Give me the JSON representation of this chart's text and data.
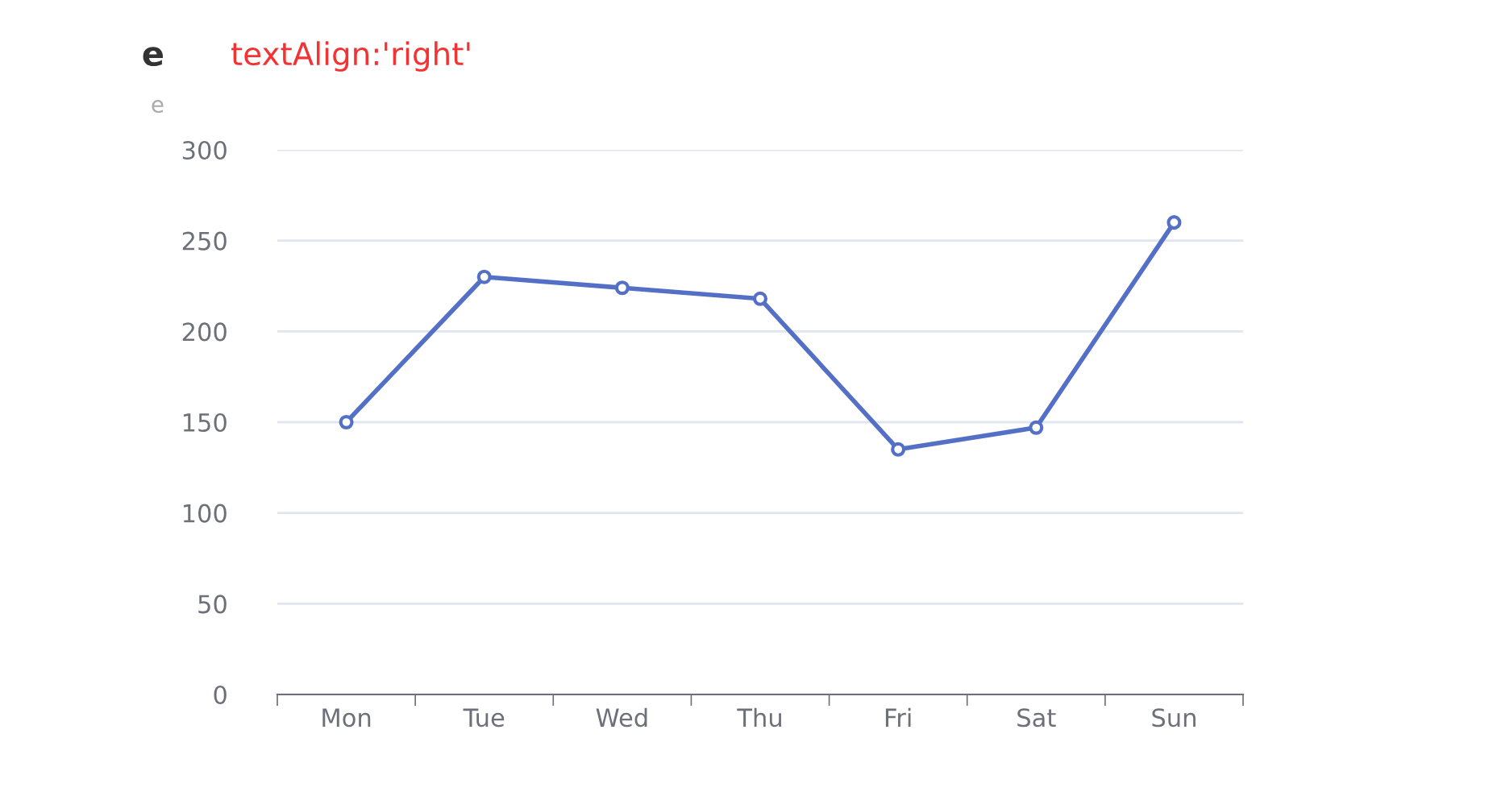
{
  "chart_data": {
    "type": "line",
    "title": "e",
    "subtitle": "e",
    "annotations": [
      "textAlign:'right'"
    ],
    "categories": [
      "Mon",
      "Tue",
      "Wed",
      "Thu",
      "Fri",
      "Sat",
      "Sun"
    ],
    "series": [
      {
        "color": "#5470c6",
        "values": [
          150,
          230,
          224,
          218,
          135,
          147,
          260
        ]
      }
    ],
    "ylim": [
      0,
      300
    ],
    "yticks": [
      0,
      50,
      100,
      150,
      200,
      250,
      300
    ],
    "grid": "y",
    "marker": "circle",
    "line_style": "solid",
    "legend": false
  }
}
